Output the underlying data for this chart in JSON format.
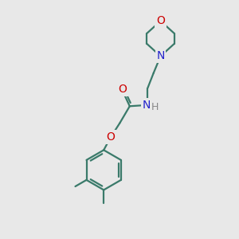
{
  "bg_color": "#e8e8e8",
  "bond_color": "#3a7a6a",
  "bond_width": 1.6,
  "atom_colors": {
    "O": "#cc0000",
    "N": "#2222cc",
    "H": "#888888",
    "C": "#3a7a6a"
  },
  "font_size_atom": 10,
  "fig_width": 3.0,
  "fig_height": 3.0,
  "dpi": 100
}
